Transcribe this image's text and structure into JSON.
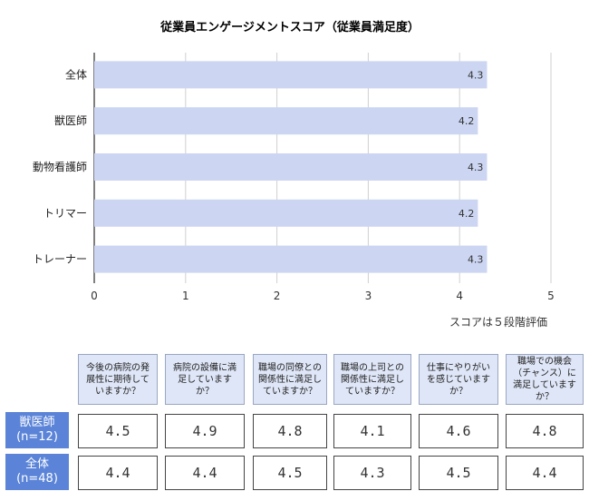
{
  "chart_data": {
    "type": "bar",
    "orientation": "horizontal",
    "title": "従業員エンゲージメントスコア（従業員満足度）",
    "categories": [
      "全体",
      "獣医師",
      "動物看護師",
      "トリマー",
      "トレーナー"
    ],
    "values": [
      4.3,
      4.2,
      4.3,
      4.2,
      4.3
    ],
    "value_labels": [
      "4.3",
      "4.2",
      "4.3",
      "4.2",
      "4.3"
    ],
    "xlim": [
      0,
      5
    ],
    "xticks": [
      "0",
      "1",
      "2",
      "3",
      "4",
      "5"
    ],
    "grid": true,
    "bar_color": "#ccd6f2",
    "note": "スコアは５段階評価"
  },
  "table": {
    "questions": [
      "今後の病院の発展性に期待していますか？",
      "病院の設備に満足していますか？",
      "職場の同僚との関係性に満足していますか？",
      "職場の上司との関係性に満足していますか？",
      "仕事にやりがいを感じていますか？",
      "職場での機会（チャンス）に満足していますか？"
    ],
    "rows": [
      {
        "label": "獣医師",
        "sub": "(n=12)",
        "values": [
          "4.5",
          "4.9",
          "4.8",
          "4.1",
          "4.6",
          "4.8"
        ]
      },
      {
        "label": "全体",
        "sub": "(n=48)",
        "values": [
          "4.4",
          "4.4",
          "4.5",
          "4.3",
          "4.5",
          "4.4"
        ]
      }
    ],
    "header_color": "#5b84d8",
    "question_bg": "#dfe6f7"
  }
}
